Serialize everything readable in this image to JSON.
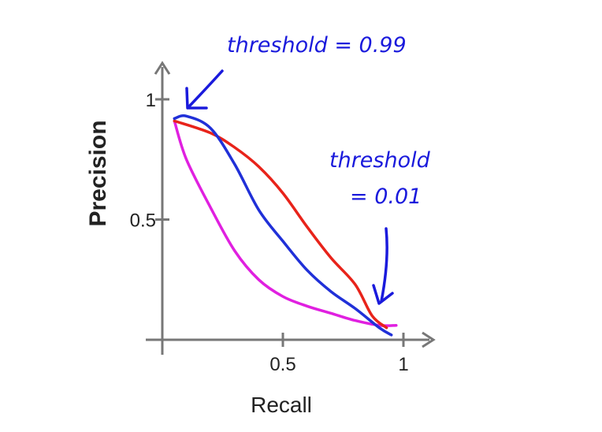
{
  "chart_data": {
    "type": "line",
    "xlabel": "Recall",
    "ylabel": "Precision",
    "xlim": [
      0,
      1.1
    ],
    "ylim": [
      0,
      1.1
    ],
    "x_ticks": [
      {
        "value": 0.5,
        "label": "0.5"
      },
      {
        "value": 1,
        "label": "1"
      }
    ],
    "y_ticks": [
      {
        "value": 0.5,
        "label": "0.5"
      },
      {
        "value": 1,
        "label": "1"
      }
    ],
    "series": [
      {
        "color": "#2030d8",
        "points": [
          [
            0.05,
            0.92
          ],
          [
            0.1,
            0.93
          ],
          [
            0.2,
            0.88
          ],
          [
            0.3,
            0.73
          ],
          [
            0.4,
            0.54
          ],
          [
            0.5,
            0.41
          ],
          [
            0.6,
            0.29
          ],
          [
            0.7,
            0.2
          ],
          [
            0.8,
            0.13
          ],
          [
            0.9,
            0.05
          ],
          [
            0.95,
            0.02
          ]
        ]
      },
      {
        "color": "#e8231a",
        "points": [
          [
            0.05,
            0.91
          ],
          [
            0.2,
            0.86
          ],
          [
            0.3,
            0.8
          ],
          [
            0.4,
            0.72
          ],
          [
            0.5,
            0.61
          ],
          [
            0.6,
            0.47
          ],
          [
            0.7,
            0.34
          ],
          [
            0.8,
            0.23
          ],
          [
            0.87,
            0.1
          ],
          [
            0.93,
            0.05
          ]
        ]
      },
      {
        "color": "#e020e0",
        "points": [
          [
            0.05,
            0.91
          ],
          [
            0.1,
            0.75
          ],
          [
            0.2,
            0.55
          ],
          [
            0.3,
            0.37
          ],
          [
            0.4,
            0.25
          ],
          [
            0.5,
            0.18
          ],
          [
            0.6,
            0.14
          ],
          [
            0.7,
            0.11
          ],
          [
            0.8,
            0.08
          ],
          [
            0.9,
            0.06
          ],
          [
            0.97,
            0.06
          ]
        ]
      }
    ],
    "annotations": [
      {
        "text": "threshold = 0.99",
        "points_to": [
          0.1,
          0.93
        ]
      },
      {
        "text_lines": [
          "threshold",
          "= 0.01"
        ],
        "points_to": [
          0.9,
          0.05
        ]
      }
    ],
    "grid": false,
    "legend": "none"
  }
}
